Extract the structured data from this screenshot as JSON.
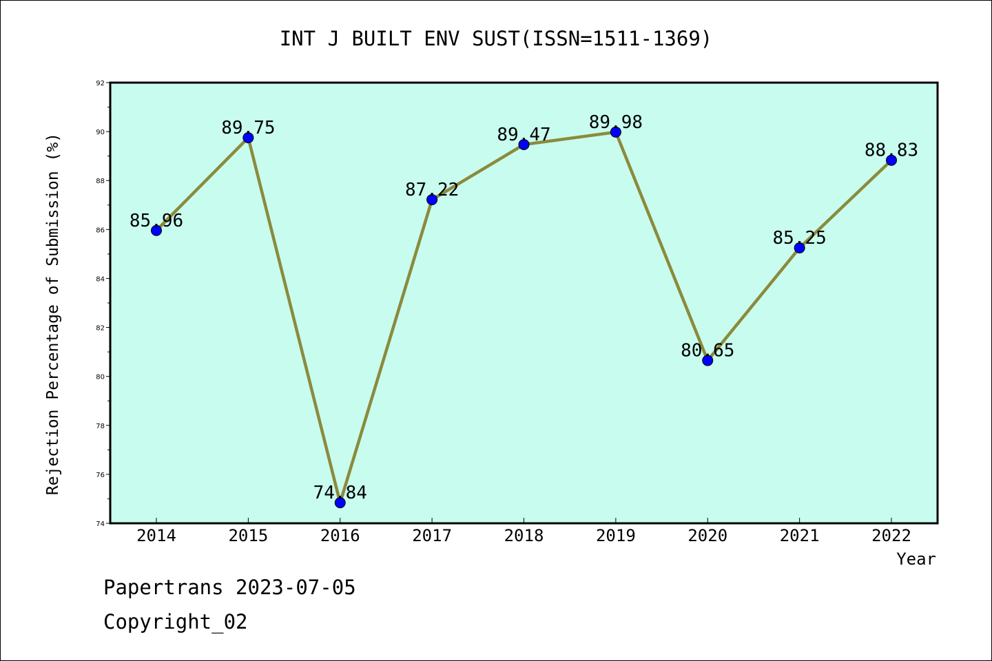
{
  "chart_data": {
    "type": "line",
    "title": "INT J BUILT ENV SUST(ISSN=1511-1369)",
    "xlabel": "Year",
    "ylabel": "Rejection Percentage of Submission (%)",
    "categories": [
      "2014",
      "2015",
      "2016",
      "2017",
      "2018",
      "2019",
      "2020",
      "2021",
      "2022"
    ],
    "series": [
      {
        "values": [
          85.96,
          89.75,
          74.84,
          87.22,
          89.47,
          89.98,
          80.65,
          85.25,
          88.83
        ],
        "labels": [
          "85.96",
          "89.75",
          "74.84",
          "87.22",
          "89.47",
          "89.98",
          "80.65",
          "85.25",
          "88.83"
        ]
      }
    ],
    "ylim": [
      74,
      92
    ],
    "yticks": [
      "74",
      "76",
      "78",
      "80",
      "82",
      "84",
      "86",
      "88",
      "90",
      "92"
    ],
    "grid": false,
    "colors": {
      "background": "#c8fcef",
      "line": "#8b8b3c",
      "marker": "#0000ff"
    }
  },
  "footer": {
    "line1": "Papertrans 2023-07-05",
    "line2": "Copyright_02"
  }
}
